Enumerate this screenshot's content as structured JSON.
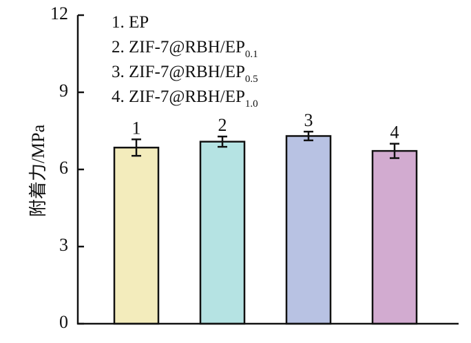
{
  "chart_data": {
    "type": "bar",
    "categories": [
      "1",
      "2",
      "3",
      "4"
    ],
    "values": [
      6.85,
      7.08,
      7.3,
      6.72
    ],
    "errors": [
      0.32,
      0.2,
      0.17,
      0.28
    ],
    "colors": [
      "#f3ecbc",
      "#b5e3e3",
      "#b8c2e3",
      "#d2abd0"
    ],
    "bar_labels": [
      "1",
      "2",
      "3",
      "4"
    ],
    "ylabel": "附着力/MPa",
    "ylim": [
      0,
      12
    ],
    "yticks": [
      0,
      3,
      6,
      9,
      12
    ],
    "grid": false,
    "legend_placement": "top-left",
    "legend": [
      {
        "text": "1. EP",
        "sub": ""
      },
      {
        "text": "2. ZIF-7@RBH/EP",
        "sub": "0.1"
      },
      {
        "text": "3. ZIF-7@RBH/EP",
        "sub": "0.5"
      },
      {
        "text": "4. ZIF-7@RBH/EP",
        "sub": "1.0"
      }
    ]
  }
}
